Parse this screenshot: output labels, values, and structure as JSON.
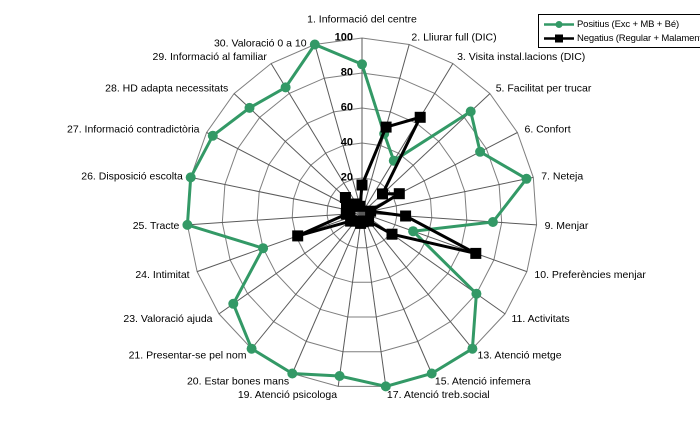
{
  "chart_data": {
    "type": "radar",
    "title": "",
    "axis_count": 23,
    "rmax": 100,
    "rticks": [
      0,
      20,
      40,
      60,
      80,
      100
    ],
    "grid": true,
    "legend_position": "top-right",
    "start_angle_deg": 90,
    "direction": "clockwise",
    "categories": [
      "1. Informació del centre",
      "2. Lliurar full (DIC)",
      "3. Visita instal.lacions (DIC)",
      "5. Facilitat per trucar",
      "6. Confort",
      "7. Neteja",
      "9. Menjar",
      "10. Preferències menjar",
      "11. Activitats",
      "13. Atenció metge",
      "15. Atenció infemera",
      "17. Atenció treb.social",
      "19. Atenció psicologa",
      "20. Estar bones mans",
      "21. Presentar-se pel nom",
      "23. Valoració ajuda",
      "24. Intimitat",
      "25. Tracte",
      "26. Disposició escolta",
      "27. Informació contradictòria",
      "28. HD adapta necessitats",
      "29. Informació al familiar",
      "30. Valoració 0 a 10"
    ],
    "series": [
      {
        "name": "Positius (Exc + MB + Bé)",
        "color": "#339966",
        "marker": "circle",
        "values": [
          85,
          47,
          35,
          85,
          76,
          96,
          75,
          31,
          80,
          100,
          100,
          100,
          94,
          100,
          100,
          90,
          60,
          100,
          100,
          96,
          88,
          84,
          100
        ]
      },
      {
        "name": "Negatius (Regular + Malament)",
        "color": "#000000",
        "marker": "square",
        "values": [
          16,
          51,
          64,
          16,
          24,
          5,
          25,
          69,
          21,
          6,
          5,
          5,
          6,
          5,
          6,
          8,
          39,
          9,
          7,
          10,
          13,
          6,
          4
        ]
      }
    ],
    "label_offsets": {
      "22": [
        -6,
        6
      ]
    },
    "grid_ring_color": "#7f7f7f",
    "spoke_color": "#5a5a5a"
  }
}
